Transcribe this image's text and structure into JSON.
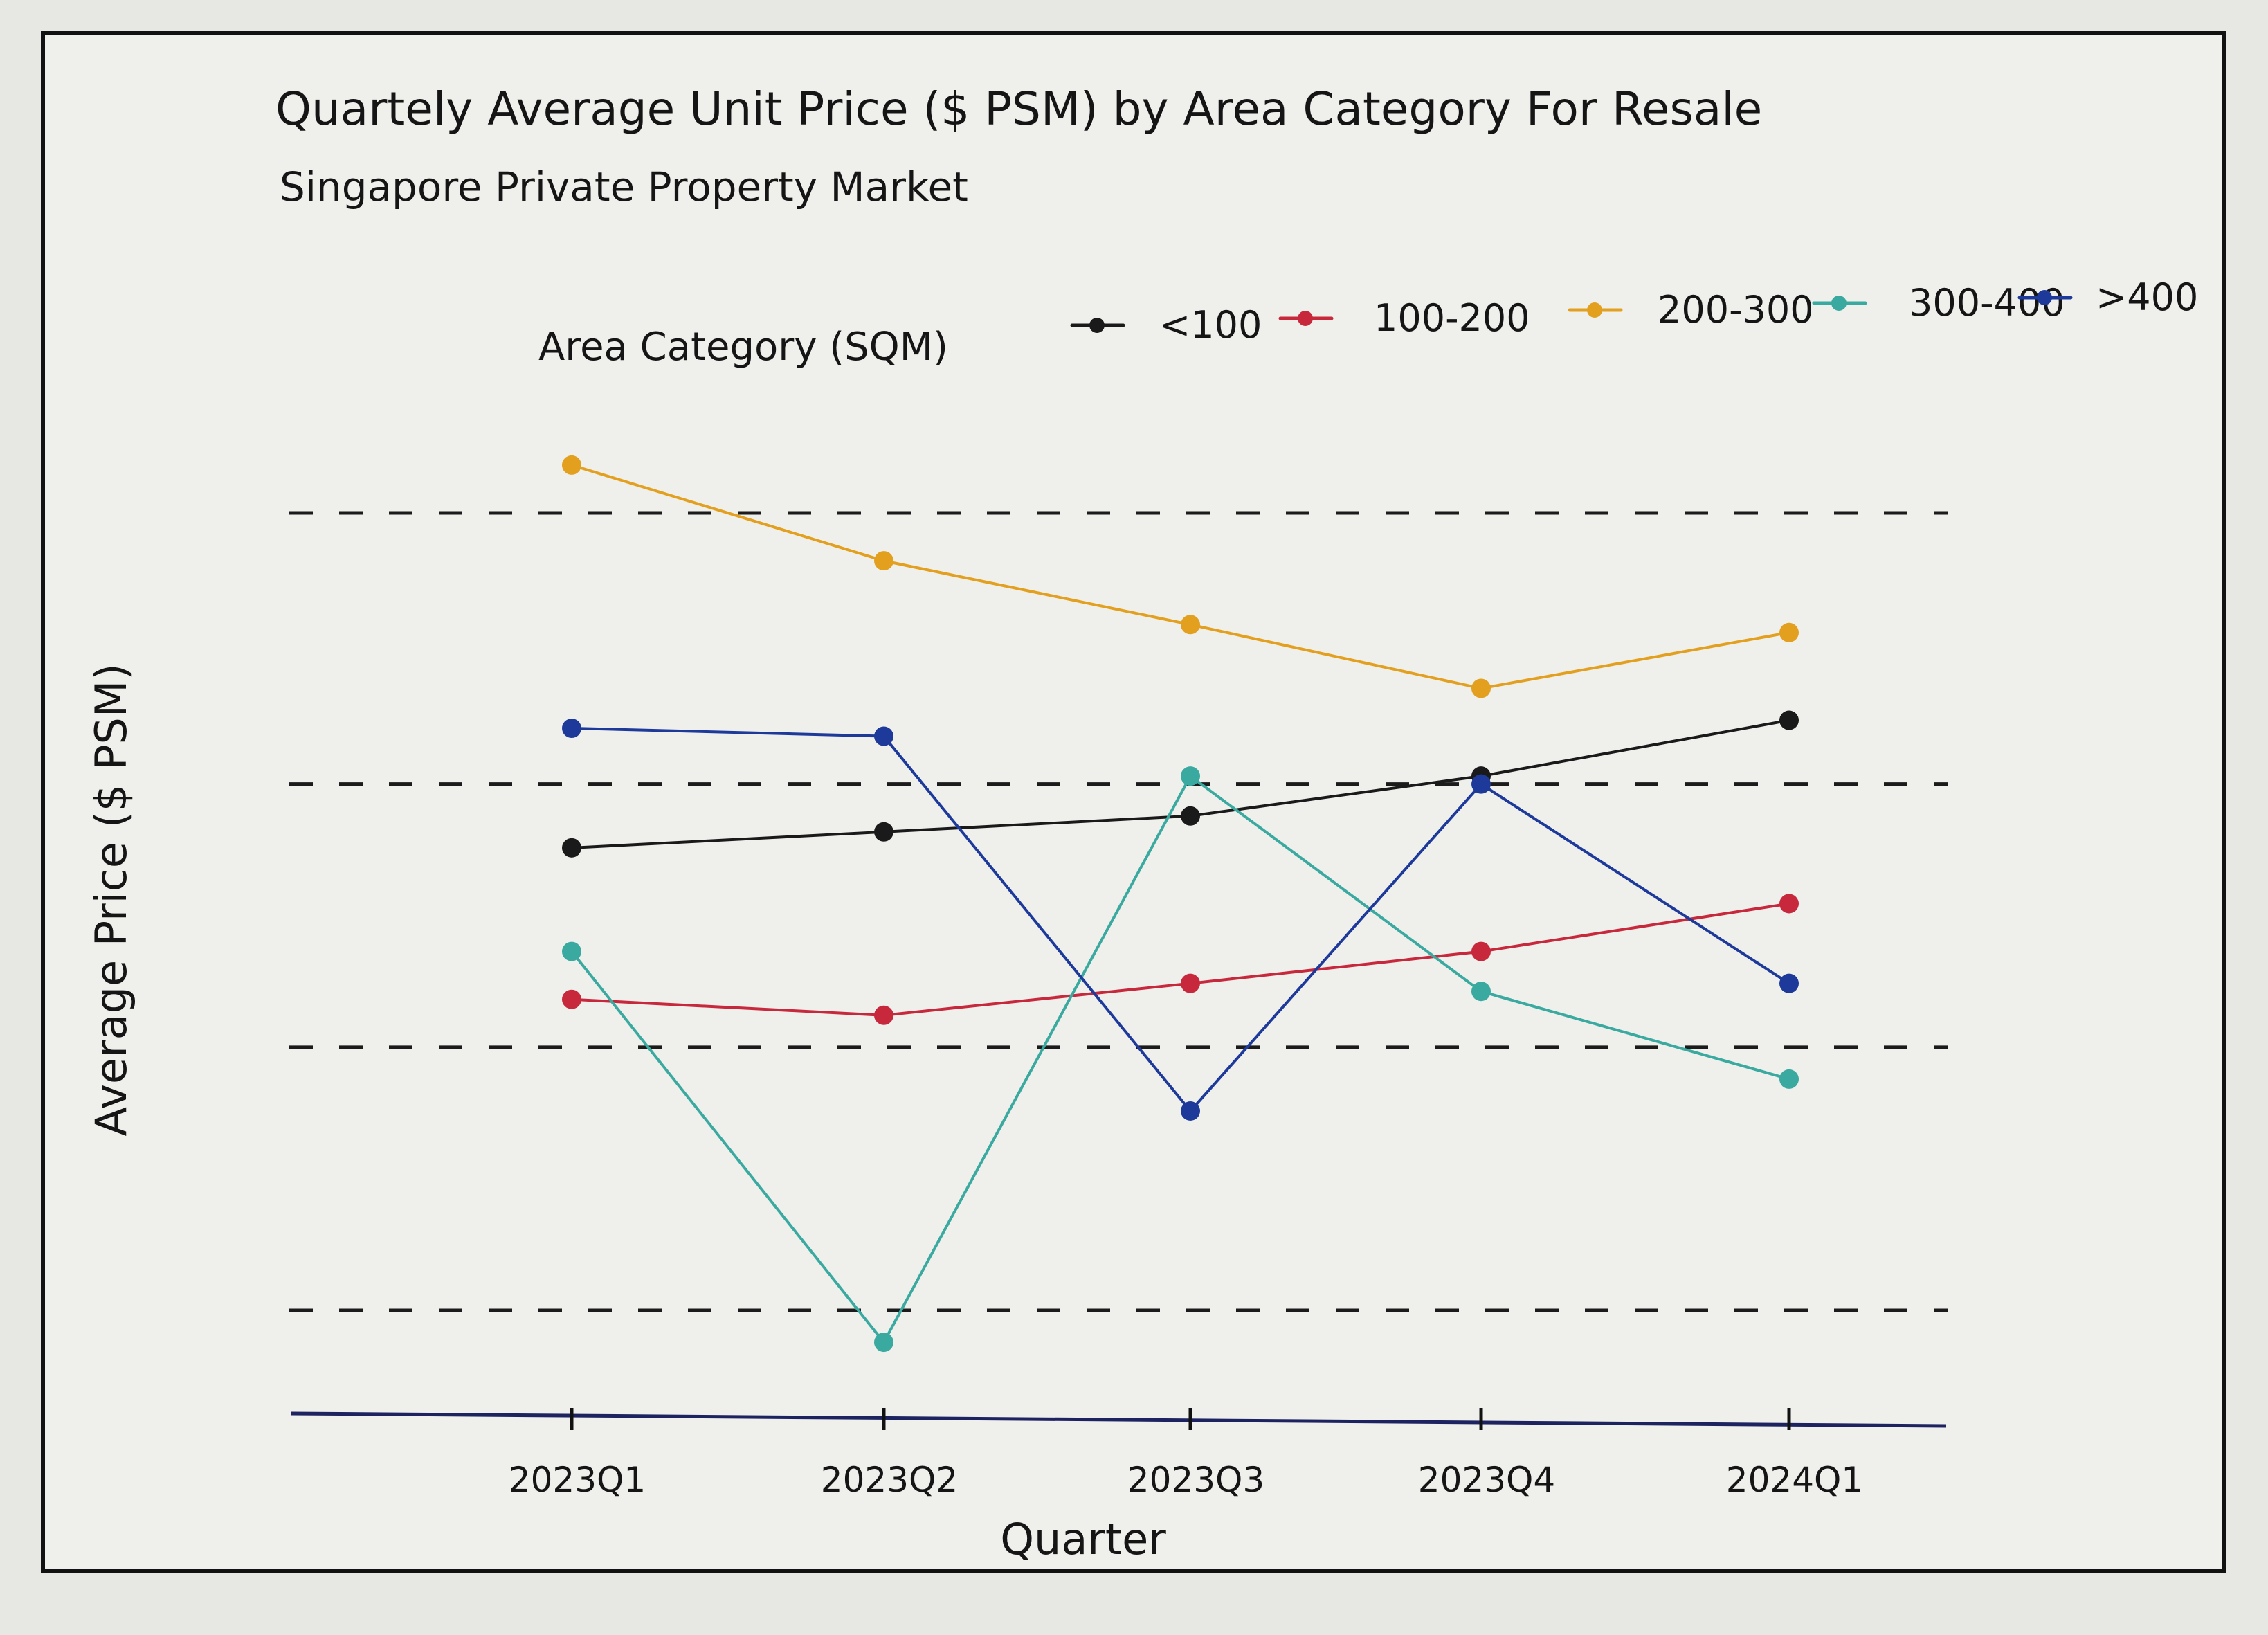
{
  "chart_data": {
    "type": "line",
    "title": "Quartely Average Unit Price ($ PSM) by Area Category For Resale",
    "subtitle": "Singapore Private Property Market",
    "xlabel": "Quarter",
    "ylabel": "Average Price ($ PSM)",
    "categories": [
      "2023Q1",
      "2023Q2",
      "2023Q3",
      "2023Q4",
      "2024Q1"
    ],
    "ylim": [
      0,
      1
    ],
    "ylim_note": "",
    "grid": true,
    "legend": {
      "title": "Area Category (SQM)",
      "placement": "top"
    },
    "series": [
      {
        "name": "<100",
        "color": "#1a1a1a",
        "values": [
          0.58,
          0.6,
          0.62,
          0.67,
          0.74
        ]
      },
      {
        "name": "100-200",
        "color": "#c8283c",
        "values": [
          0.39,
          0.37,
          0.41,
          0.45,
          0.51
        ]
      },
      {
        "name": "200-300",
        "color": "#e3a01f",
        "values": [
          1.06,
          0.94,
          0.86,
          0.78,
          0.85
        ]
      },
      {
        "name": "300-400",
        "color": "#3aa9a0",
        "values": [
          0.45,
          -0.04,
          0.67,
          0.4,
          0.29
        ]
      },
      {
        "name": ">400",
        "color": "#1d3a9b",
        "values": [
          0.73,
          0.72,
          0.25,
          0.66,
          0.41
        ]
      }
    ]
  }
}
